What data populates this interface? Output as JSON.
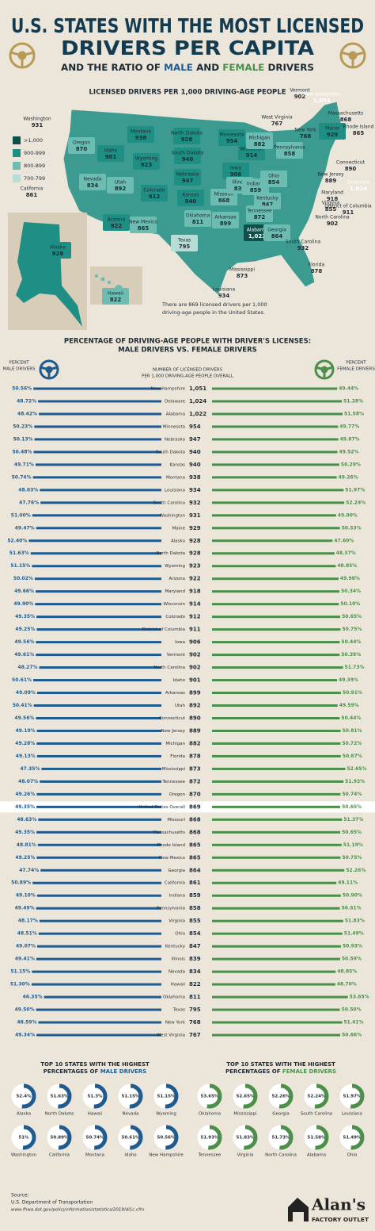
{
  "header": {
    "title_line1": "U.S. STATES WITH THE MOST LICENSED",
    "title_line2": "DRIVERS PER CAPITA",
    "subtitle_parts": [
      "AND THE RATIO OF ",
      "MALE",
      " AND ",
      "FEMALE",
      " DRIVERS"
    ]
  },
  "colors": {
    "male": "#1f5b8e",
    "female": "#4b8f4a",
    "title": "#123b52"
  },
  "map": {
    "title": "LICENSED DRIVERS PER 1,000 DRIVING-AGE PEOPLE",
    "legend": [
      {
        "label": ">1,000",
        "color": "#0f4f4a"
      },
      {
        "label": "900-999",
        "color": "#1f8f85"
      },
      {
        "label": "800-899",
        "color": "#6cbcb1"
      },
      {
        "label": "700-799",
        "color": "#b7ded6"
      }
    ],
    "note_lines": [
      "There are 869 licensed drivers per 1,000",
      "driving-age people in the United States."
    ],
    "states": [
      {
        "name": "Washington",
        "value": 931
      },
      {
        "name": "Oregon",
        "value": 870
      },
      {
        "name": "California",
        "value": 861
      },
      {
        "name": "Idaho",
        "value": 901
      },
      {
        "name": "Nevada",
        "value": 834
      },
      {
        "name": "Montana",
        "value": 938
      },
      {
        "name": "Wyoming",
        "value": 923
      },
      {
        "name": "Utah",
        "value": 892
      },
      {
        "name": "Arizona",
        "value": 922
      },
      {
        "name": "Colorado",
        "value": 912
      },
      {
        "name": "New Mexico",
        "value": 865
      },
      {
        "name": "North Dakota",
        "value": 928
      },
      {
        "name": "South Dakota",
        "value": 940
      },
      {
        "name": "Nebraska",
        "value": 947
      },
      {
        "name": "Kansas",
        "value": 940
      },
      {
        "name": "Oklahoma",
        "value": 811
      },
      {
        "name": "Texas",
        "value": 795
      },
      {
        "name": "Minnesota",
        "value": 954
      },
      {
        "name": "Iowa",
        "value": 906
      },
      {
        "name": "Missouri",
        "value": 868
      },
      {
        "name": "Arkansas",
        "value": 899
      },
      {
        "name": "Louisiana",
        "value": 934
      },
      {
        "name": "Mississippi",
        "value": 873
      },
      {
        "name": "Wisconsin",
        "value": 914
      },
      {
        "name": "Illinois",
        "value": 839
      },
      {
        "name": "Michigan",
        "value": 882
      },
      {
        "name": "Indiana",
        "value": 859
      },
      {
        "name": "Ohio",
        "value": 854
      },
      {
        "name": "Kentucky",
        "value": 847
      },
      {
        "name": "Tennessee",
        "value": 872
      },
      {
        "name": "Alabama",
        "value": {
          "value": 1022,
          "label": "1,022"
        }
      },
      {
        "name": "Georgia",
        "value": 864
      },
      {
        "name": "Florida",
        "value": 878
      },
      {
        "name": "South Carolina",
        "value": 932
      },
      {
        "name": "North Carolina",
        "value": 902
      },
      {
        "name": "Virginia",
        "value": 855
      },
      {
        "name": "West Virginia",
        "value": 767
      },
      {
        "name": "Pennsylvania",
        "value": 858
      },
      {
        "name": "New York",
        "value": 768
      },
      {
        "name": "Vermont",
        "value": 902
      },
      {
        "name": "New Hampshire",
        "value": {
          "value": 1051,
          "label": "1,051"
        }
      },
      {
        "name": "Maine",
        "value": 929
      },
      {
        "name": "Massachusetts",
        "value": 868
      },
      {
        "name": "Rhode Island",
        "value": 865
      },
      {
        "name": "Connecticut",
        "value": 890
      },
      {
        "name": "New Jersey",
        "value": 889
      },
      {
        "name": "Delaware",
        "value": {
          "value": 1024,
          "label": "1,024"
        }
      },
      {
        "name": "Maryland",
        "value": 918
      },
      {
        "name": "District of Columbia",
        "value": 911
      },
      {
        "name": "Alaska",
        "value": 928
      },
      {
        "name": "Hawaii",
        "value": 822
      }
    ]
  },
  "ratio": {
    "title_line1": "PERCENTAGE OF DRIVING-AGE PEOPLE WITH DRIVER'S LICENSES:",
    "title_line2": "MALE DRIVERS VS. FEMALE DRIVERS",
    "male_header": [
      "PERCENT",
      "MALE DRIVERS"
    ],
    "female_header": [
      "PERCENT",
      "FEMALE DRIVERS"
    ],
    "center_header": [
      "NUMBER OF LICENSED DRIVERS",
      "PER 1,000 DRIVING-AGE PEOPLE OVERALL"
    ],
    "rows": [
      {
        "state": "New Hampshire",
        "male": 50.56,
        "male_label": "50.56%",
        "count": {
          "value": 1051,
          "label": "1,051"
        },
        "female": 49.44,
        "female_label": "49.44%"
      },
      {
        "state": "Delaware",
        "male": 48.72,
        "male_label": "48.72%",
        "count": {
          "value": 1024,
          "label": "1,024"
        },
        "female": 51.28,
        "female_label": "51.28%"
      },
      {
        "state": "Alabama",
        "male": 48.42,
        "male_label": "48.42%",
        "count": {
          "value": 1022,
          "label": "1,022"
        },
        "female": 51.58,
        "female_label": "51.58%"
      },
      {
        "state": "Minnesota",
        "male": 50.23,
        "male_label": "50.23%",
        "count": 954,
        "female": 49.77,
        "female_label": "49.77%"
      },
      {
        "state": "Nebraska",
        "male": 50.13,
        "male_label": "50.13%",
        "count": 947,
        "female": 49.87,
        "female_label": "49.87%"
      },
      {
        "state": "South Dakota",
        "male": 50.48,
        "male_label": "50.48%",
        "count": 940,
        "female": 49.52,
        "female_label": "49.52%"
      },
      {
        "state": "Kansas",
        "male": 49.71,
        "male_label": "49.71%",
        "count": 940,
        "female": 50.29,
        "female_label": "50.29%"
      },
      {
        "state": "Montana",
        "male": 50.74,
        "male_label": "50.74%",
        "count": 938,
        "female": 49.26,
        "female_label": "49.26%"
      },
      {
        "state": "Louisiana",
        "male": 48.03,
        "male_label": "48.03%",
        "count": 934,
        "female": 51.97,
        "female_label": "51.97%"
      },
      {
        "state": "South Carolina",
        "male": 47.76,
        "male_label": "47.76%",
        "count": 932,
        "female": 52.24,
        "female_label": "52.24%"
      },
      {
        "state": "Washington",
        "male": 51.0,
        "male_label": "51.00%",
        "count": 931,
        "female": 49.0,
        "female_label": "49.00%"
      },
      {
        "state": "Maine",
        "male": 49.47,
        "male_label": "49.47%",
        "count": 929,
        "female": 50.53,
        "female_label": "50.53%"
      },
      {
        "state": "Alaska",
        "male": 52.4,
        "male_label": "52.40%",
        "count": 928,
        "female": 47.6,
        "female_label": "47.60%"
      },
      {
        "state": "North Dakota",
        "male": 51.63,
        "male_label": "51.63%",
        "count": 928,
        "female": 48.37,
        "female_label": "48.37%"
      },
      {
        "state": "Wyoming",
        "male": 51.15,
        "male_label": "51.15%",
        "count": 923,
        "female": 48.85,
        "female_label": "48.85%"
      },
      {
        "state": "Arizona",
        "male": 50.02,
        "male_label": "50.02%",
        "count": 922,
        "female": 49.98,
        "female_label": "49.98%"
      },
      {
        "state": "Maryland",
        "male": 49.66,
        "male_label": "49.66%",
        "count": 918,
        "female": 50.34,
        "female_label": "50.34%"
      },
      {
        "state": "Wisconsin",
        "male": 49.9,
        "male_label": "49.90%",
        "count": 914,
        "female": 50.1,
        "female_label": "50.10%"
      },
      {
        "state": "Colorado",
        "male": 49.35,
        "male_label": "49.35%",
        "count": 912,
        "female": 50.65,
        "female_label": "50.65%"
      },
      {
        "state": "District of Columbia",
        "male": 49.25,
        "male_label": "49.25%",
        "count": 911,
        "female": 50.75,
        "female_label": "50.75%"
      },
      {
        "state": "Iowa",
        "male": 49.56,
        "male_label": "49.56%",
        "count": 906,
        "female": 50.44,
        "female_label": "50.44%"
      },
      {
        "state": "Vermont",
        "male": 49.61,
        "male_label": "49.61%",
        "count": 902,
        "female": 50.39,
        "female_label": "50.39%"
      },
      {
        "state": "North Carolina",
        "male": 48.27,
        "male_label": "48.27%",
        "count": 902,
        "female": 51.73,
        "female_label": "51.73%"
      },
      {
        "state": "Idaho",
        "male": 50.61,
        "male_label": "50.61%",
        "count": 901,
        "female": 49.39,
        "female_label": "49.39%"
      },
      {
        "state": "Arkansas",
        "male": 49.09,
        "male_label": "49.09%",
        "count": 899,
        "female": 50.91,
        "female_label": "50.91%"
      },
      {
        "state": "Utah",
        "male": 50.41,
        "male_label": "50.41%",
        "count": 892,
        "female": 49.59,
        "female_label": "49.59%"
      },
      {
        "state": "Connecticut",
        "male": 49.56,
        "male_label": "49.56%",
        "count": 890,
        "female": 50.44,
        "female_label": "50.44%"
      },
      {
        "state": "New Jersey",
        "male": 49.19,
        "male_label": "49.19%",
        "count": 889,
        "female": 50.81,
        "female_label": "50.81%"
      },
      {
        "state": "Michigan",
        "male": 49.28,
        "male_label": "49.28%",
        "count": 882,
        "female": 50.72,
        "female_label": "50.72%"
      },
      {
        "state": "Florida",
        "male": 49.13,
        "male_label": "49.13%",
        "count": 878,
        "female": 50.87,
        "female_label": "50.87%"
      },
      {
        "state": "Mississippi",
        "male": 47.35,
        "male_label": "47.35%",
        "count": 873,
        "female": 52.65,
        "female_label": "52.65%"
      },
      {
        "state": "Tennessee",
        "male": 48.07,
        "male_label": "48.07%",
        "count": 872,
        "female": 51.93,
        "female_label": "51.93%"
      },
      {
        "state": "Oregon",
        "male": 49.26,
        "male_label": "49.26%",
        "count": 870,
        "female": 50.74,
        "female_label": "50.74%"
      },
      {
        "state": "United States Overall",
        "male": 49.35,
        "male_label": "49.35%",
        "count": 869,
        "female": 50.65,
        "female_label": "50.65%",
        "highlight": true
      },
      {
        "state": "Missouri",
        "male": 48.63,
        "male_label": "48.63%",
        "count": 868,
        "female": 51.37,
        "female_label": "51.37%"
      },
      {
        "state": "Massachusetts",
        "male": 49.35,
        "male_label": "49.35%",
        "count": 868,
        "female": 50.65,
        "female_label": "50.65%"
      },
      {
        "state": "Rhode Island",
        "male": 48.81,
        "male_label": "48.81%",
        "count": 865,
        "female": 51.19,
        "female_label": "51.19%"
      },
      {
        "state": "New Mexico",
        "male": 49.25,
        "male_label": "49.25%",
        "count": 865,
        "female": 50.75,
        "female_label": "50.75%"
      },
      {
        "state": "Georgia",
        "male": 47.74,
        "male_label": "47.74%",
        "count": 864,
        "female": 52.26,
        "female_label": "52.26%"
      },
      {
        "state": "California",
        "male": 50.89,
        "male_label": "50.89%",
        "count": 861,
        "female": 49.11,
        "female_label": "49.11%"
      },
      {
        "state": "Indiana",
        "male": 49.1,
        "male_label": "49.10%",
        "count": 859,
        "female": 50.9,
        "female_label": "50.90%"
      },
      {
        "state": "Pennsylvania",
        "male": 49.49,
        "male_label": "49.49%",
        "count": 858,
        "female": 50.51,
        "female_label": "50.51%"
      },
      {
        "state": "Virginia",
        "male": 48.17,
        "male_label": "48.17%",
        "count": 855,
        "female": 51.83,
        "female_label": "51.83%"
      },
      {
        "state": "Ohio",
        "male": 48.51,
        "male_label": "48.51%",
        "count": 854,
        "female": 51.49,
        "female_label": "51.49%"
      },
      {
        "state": "Kentucky",
        "male": 49.07,
        "male_label": "49.07%",
        "count": 847,
        "female": 50.93,
        "female_label": "50.93%"
      },
      {
        "state": "Illinois",
        "male": 49.41,
        "male_label": "49.41%",
        "count": 839,
        "female": 50.59,
        "female_label": "50.59%"
      },
      {
        "state": "Nevada",
        "male": 51.15,
        "male_label": "51.15%",
        "count": 834,
        "female": 48.85,
        "female_label": "48.85%"
      },
      {
        "state": "Hawaii",
        "male": 51.3,
        "male_label": "51.30%",
        "count": 822,
        "female": 48.7,
        "female_label": "48.70%"
      },
      {
        "state": "Oklahoma",
        "male": 46.35,
        "male_label": "46.35%",
        "count": 811,
        "female": 53.65,
        "female_label": "53.65%"
      },
      {
        "state": "Texas",
        "male": 49.5,
        "male_label": "49.50%",
        "count": 795,
        "female": 50.5,
        "female_label": "50.50%"
      },
      {
        "state": "New York",
        "male": 48.59,
        "male_label": "48.59%",
        "count": 768,
        "female": 51.41,
        "female_label": "51.41%"
      },
      {
        "state": "West Virginia",
        "male": 49.34,
        "male_label": "49.34%",
        "count": 767,
        "female": 50.66,
        "female_label": "50.66%"
      }
    ]
  },
  "top_male": {
    "title_parts": [
      "TOP 10 STATES WITH THE HIGHEST",
      "PERCENTAGES OF ",
      "MALE DRIVERS"
    ],
    "items": [
      {
        "state": "Alaska",
        "value": 52.4,
        "label": "52.4%"
      },
      {
        "state": "North Dakota",
        "value": 51.63,
        "label": "51.63%"
      },
      {
        "state": "Hawaii",
        "value": 51.3,
        "label": "51.3%"
      },
      {
        "state": "Nevada",
        "value": 51.15,
        "label": "51.15%"
      },
      {
        "state": "Wyoming",
        "value": 51.15,
        "label": "51.15%"
      },
      {
        "state": "Washington",
        "value": 51,
        "label": "51%"
      },
      {
        "state": "California",
        "value": 50.89,
        "label": "50.89%"
      },
      {
        "state": "Montana",
        "value": 50.74,
        "label": "50.74%"
      },
      {
        "state": "Idaho",
        "value": 50.61,
        "label": "50.61%"
      },
      {
        "state": "New Hampshire",
        "value": 50.56,
        "label": "50.56%"
      }
    ]
  },
  "top_female": {
    "title_parts": [
      "TOP 10 STATES WITH THE HIGHEST",
      "PERCENTAGES OF ",
      "FEMALE DRIVERS"
    ],
    "items": [
      {
        "state": "Oklahoma",
        "value": 53.65,
        "label": "53.65%"
      },
      {
        "state": "Mississippi",
        "value": 52.65,
        "label": "52.65%"
      },
      {
        "state": "Georgia",
        "value": 52.26,
        "label": "52.26%"
      },
      {
        "state": "South Carolina",
        "value": 52.24,
        "label": "52.24%"
      },
      {
        "state": "Louisiana",
        "value": 51.97,
        "label": "51.97%"
      },
      {
        "state": "Tennessee",
        "value": 51.93,
        "label": "51.93%"
      },
      {
        "state": "Virginia",
        "value": 51.83,
        "label": "51.83%"
      },
      {
        "state": "North Carolina",
        "value": 51.73,
        "label": "51.73%"
      },
      {
        "state": "Alabama",
        "value": 51.58,
        "label": "51.58%"
      },
      {
        "state": "Ohio",
        "value": 51.49,
        "label": "51.49%"
      }
    ]
  },
  "footer": {
    "source_label": "Source:",
    "source": "U.S. Department of Transportation",
    "url": "www.fhwa.dot.gov/policyinformation/statistics/2019/dl1c.cfm",
    "logo": "Alan's",
    "logo_sub": "FACTORY OUTLET"
  }
}
